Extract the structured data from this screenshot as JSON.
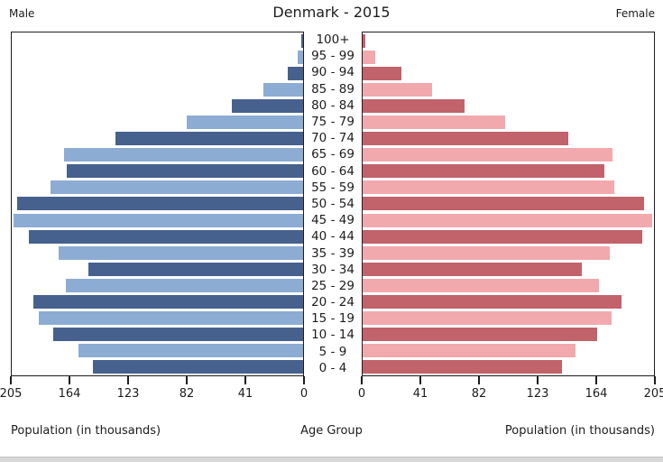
{
  "header": {
    "left_label": "Male",
    "title": "Denmark - 2015",
    "right_label": "Female"
  },
  "footer": {
    "left_axis_title": "Population (in thousands)",
    "center_axis_title": "Age Group",
    "right_axis_title": "Population (in thousands)"
  },
  "colors": {
    "male_dark": "#46618e",
    "male_light": "#8cacd3",
    "female_dark": "#c2626a",
    "female_light": "#f2a9ad",
    "axis": "#1c1c1c",
    "background": "#ffffff"
  },
  "chart_data": {
    "type": "bar",
    "subtype": "population-pyramid",
    "title": "Denmark - 2015",
    "categories": [
      "100+",
      "95 - 99",
      "90 - 94",
      "85 - 89",
      "80 - 84",
      "75 - 79",
      "70 - 74",
      "65 - 69",
      "60 - 64",
      "55 - 59",
      "50 - 54",
      "45 - 49",
      "40 - 44",
      "35 - 39",
      "30 - 34",
      "25 - 29",
      "20 - 24",
      "15 - 19",
      "10 - 14",
      "5 - 9",
      "0 - 4"
    ],
    "series": [
      {
        "name": "Male",
        "side": "left",
        "color_dark": "#46618e",
        "color_light": "#8cacd3",
        "values": [
          1,
          4,
          11,
          28,
          50,
          82,
          132,
          168,
          166,
          178,
          201,
          204,
          193,
          172,
          151,
          167,
          190,
          186,
          176,
          158,
          148
        ]
      },
      {
        "name": "Female",
        "side": "right",
        "color_dark": "#c2626a",
        "color_light": "#f2a9ad",
        "values": [
          2,
          9,
          27,
          49,
          72,
          100,
          145,
          176,
          170,
          177,
          198,
          204,
          197,
          174,
          154,
          166,
          182,
          175,
          165,
          150,
          140
        ]
      }
    ],
    "value_unit": "thousands",
    "xlabel": "Population (in thousands)",
    "center_axis_label": "Age Group",
    "xlim": [
      0,
      205
    ],
    "x_ticks": [
      0,
      41,
      82,
      123,
      164,
      205
    ],
    "left_axis_tick_labels": [
      "205",
      "164",
      "123",
      "82",
      "41",
      "0"
    ],
    "right_axis_tick_labels": [
      "0",
      "41",
      "82",
      "123",
      "164",
      "205"
    ],
    "grid": false,
    "legend_position": "none"
  }
}
